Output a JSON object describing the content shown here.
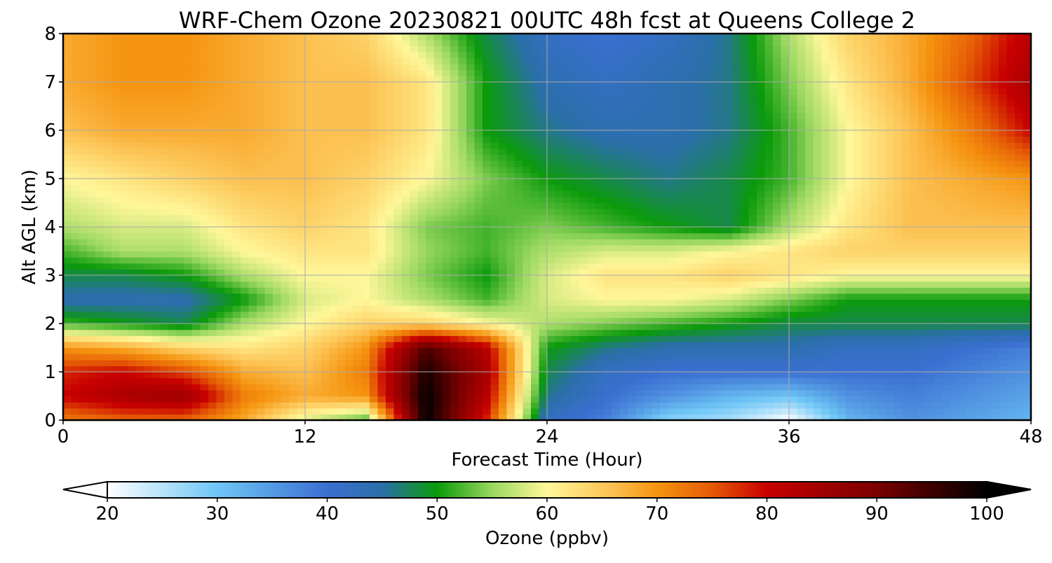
{
  "chart_data": {
    "type": "heatmap",
    "title": "WRF-Chem Ozone  20230821 00UTC 48h fcst at Queens College 2",
    "xlabel": "Forecast Time (Hour)",
    "ylabel": "Alt AGL (km)",
    "xlim": [
      0,
      48
    ],
    "ylim": [
      0,
      8
    ],
    "xticks": [
      0,
      12,
      24,
      36,
      48
    ],
    "yticks": [
      0,
      1,
      2,
      3,
      4,
      5,
      6,
      7,
      8
    ],
    "grid": true,
    "x": [
      0,
      3,
      6,
      9,
      12,
      15,
      18,
      21,
      24,
      27,
      30,
      33,
      36,
      39,
      42,
      45,
      48
    ],
    "y": [
      0,
      0.5,
      1,
      1.5,
      2,
      2.5,
      3,
      3.5,
      4,
      5,
      6,
      7,
      8
    ],
    "values": [
      [
        72,
        74,
        74,
        68,
        58,
        52,
        100,
        78,
        42,
        38,
        28,
        26,
        20,
        32,
        36,
        34,
        32
      ],
      [
        80,
        84,
        86,
        72,
        68,
        70,
        100,
        82,
        46,
        40,
        36,
        32,
        30,
        36,
        38,
        36,
        34
      ],
      [
        78,
        80,
        76,
        68,
        66,
        72,
        98,
        84,
        48,
        42,
        40,
        40,
        40,
        40,
        40,
        38,
        36
      ],
      [
        70,
        68,
        64,
        62,
        64,
        70,
        94,
        82,
        50,
        46,
        44,
        44,
        44,
        42,
        42,
        40,
        38
      ],
      [
        52,
        50,
        48,
        56,
        60,
        64,
        64,
        60,
        56,
        54,
        52,
        50,
        48,
        48,
        48,
        48,
        48
      ],
      [
        44,
        44,
        44,
        50,
        58,
        60,
        56,
        52,
        58,
        60,
        60,
        58,
        54,
        50,
        50,
        50,
        50
      ],
      [
        48,
        48,
        50,
        56,
        60,
        60,
        54,
        50,
        58,
        62,
        62,
        64,
        62,
        60,
        60,
        60,
        60
      ],
      [
        52,
        56,
        56,
        60,
        62,
        62,
        55,
        52,
        56,
        58,
        58,
        60,
        62,
        64,
        64,
        64,
        64
      ],
      [
        56,
        58,
        58,
        62,
        64,
        62,
        54,
        52,
        54,
        52,
        50,
        48,
        56,
        62,
        66,
        66,
        66
      ],
      [
        60,
        62,
        64,
        66,
        66,
        64,
        60,
        54,
        50,
        48,
        46,
        48,
        52,
        60,
        66,
        68,
        70
      ],
      [
        66,
        68,
        68,
        68,
        66,
        66,
        62,
        50,
        46,
        44,
        44,
        46,
        52,
        60,
        66,
        72,
        80
      ],
      [
        68,
        70,
        70,
        68,
        66,
        66,
        62,
        50,
        44,
        42,
        44,
        46,
        54,
        62,
        68,
        76,
        84
      ],
      [
        68,
        70,
        70,
        68,
        66,
        64,
        56,
        48,
        42,
        40,
        42,
        46,
        56,
        64,
        68,
        74,
        82
      ]
    ],
    "colorbar": {
      "label": "Ozone  (ppbv)",
      "min": 20,
      "max": 100,
      "ticks": [
        20,
        30,
        40,
        50,
        60,
        70,
        80,
        90,
        100
      ],
      "extend": "both",
      "stops": [
        {
          "v": 20,
          "c": "#ffffff"
        },
        {
          "v": 30,
          "c": "#6ec6f6"
        },
        {
          "v": 40,
          "c": "#3b6fd1"
        },
        {
          "v": 45,
          "c": "#2a6fa8"
        },
        {
          "v": 50,
          "c": "#0a9a0a"
        },
        {
          "v": 55,
          "c": "#9ad860"
        },
        {
          "v": 60,
          "c": "#fff79a"
        },
        {
          "v": 66,
          "c": "#fcc050"
        },
        {
          "v": 70,
          "c": "#f59410"
        },
        {
          "v": 75,
          "c": "#e55a05"
        },
        {
          "v": 80,
          "c": "#c80000"
        },
        {
          "v": 90,
          "c": "#7a0000"
        },
        {
          "v": 100,
          "c": "#000000"
        }
      ],
      "under_color": "#ffffff",
      "over_color": "#000000"
    }
  }
}
